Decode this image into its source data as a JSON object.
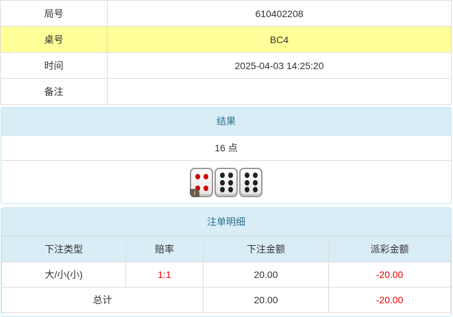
{
  "info": [
    {
      "label": "局号",
      "value": "610402208"
    },
    {
      "label": "桌号",
      "value": "BC4"
    },
    {
      "label": "时间",
      "value": "2025-04-03 14:25:20"
    },
    {
      "label": "备注",
      "value": ""
    }
  ],
  "result": {
    "title": "结果",
    "points": "16 点",
    "dice": [
      4,
      6,
      6
    ],
    "info_badge": "i"
  },
  "bets": {
    "title": "注单明细",
    "headers": [
      "下注类型",
      "赔率",
      "下注金额",
      "派彩金额"
    ],
    "rows": [
      {
        "type": "大/小(小)",
        "odds": "1:1",
        "amount": "20.00",
        "payout": "-20.00"
      }
    ],
    "total": {
      "label": "总计",
      "amount": "20.00",
      "payout": "-20.00"
    }
  },
  "colors": {
    "highlight": "#ffff99",
    "panel_header": "#d9edf7",
    "negative": "#ee0000"
  }
}
